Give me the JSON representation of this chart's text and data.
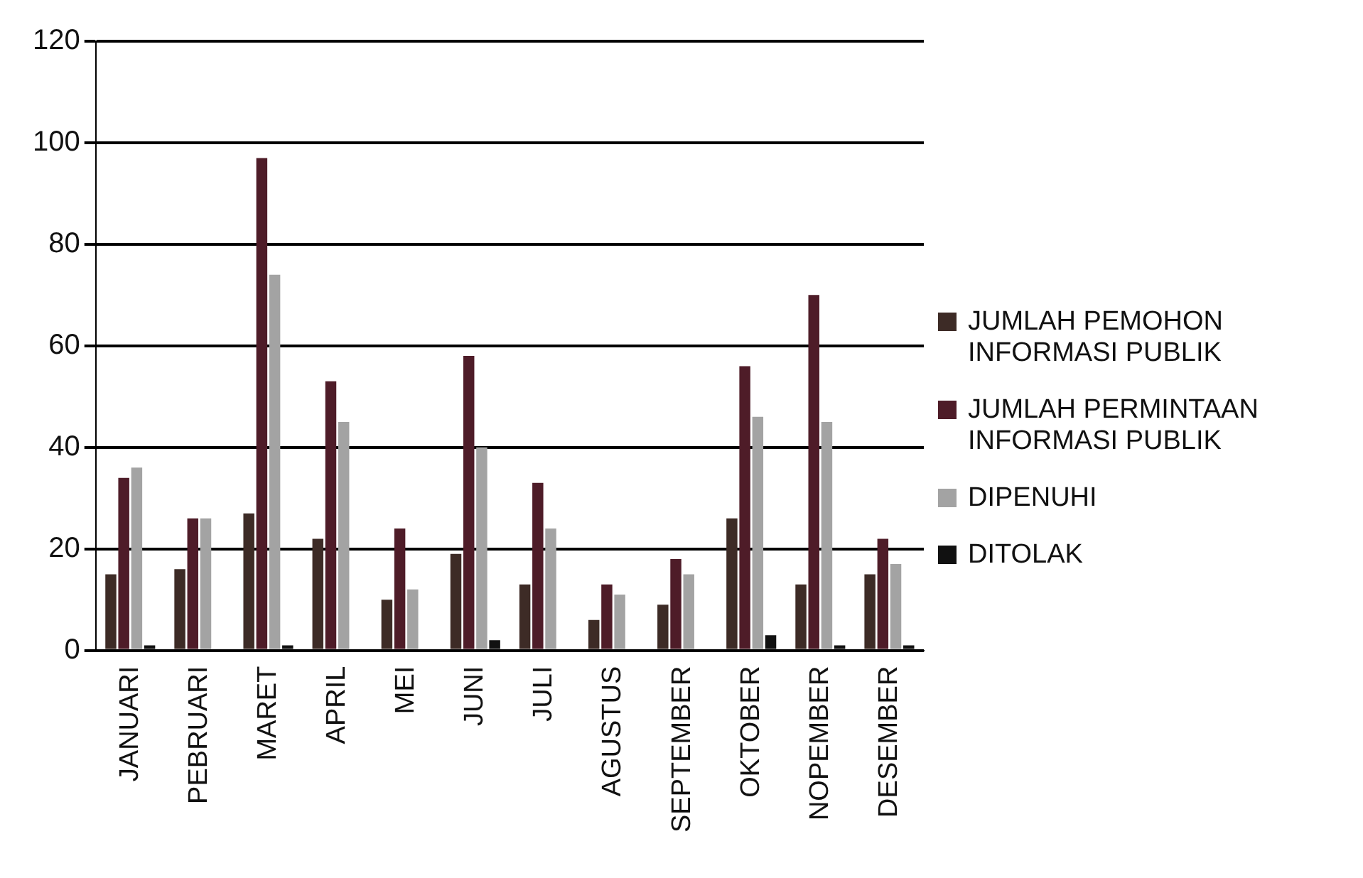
{
  "chart_data": {
    "type": "bar",
    "categories": [
      "JANUARI",
      "PEBRUARI",
      "MARET",
      "APRIL",
      "MEI",
      "JUNI",
      "JULI",
      "AGUSTUS",
      "SEPTEMBER",
      "OKTOBER",
      "NOPEMBER",
      "DESEMBER"
    ],
    "series": [
      {
        "name": "JUMLAH PEMOHON INFORMASI PUBLIK",
        "color": "#3d2b26",
        "values": [
          15,
          16,
          27,
          22,
          10,
          19,
          13,
          6,
          9,
          26,
          13,
          15
        ]
      },
      {
        "name": "JUMLAH PERMINTAAN INFORMASI PUBLIK",
        "color": "#4e1c28",
        "values": [
          34,
          26,
          97,
          53,
          24,
          58,
          33,
          13,
          18,
          56,
          70,
          22
        ]
      },
      {
        "name": "DIPENUHI",
        "color": "#a3a3a3",
        "values": [
          36,
          26,
          74,
          45,
          12,
          40,
          24,
          11,
          15,
          46,
          45,
          17
        ]
      },
      {
        "name": "DITOLAK",
        "color": "#111111",
        "values": [
          1,
          0,
          1,
          0,
          0,
          2,
          0,
          0,
          0,
          3,
          1,
          1
        ]
      }
    ],
    "ylim": [
      0,
      120
    ],
    "yticks": [
      0,
      20,
      40,
      60,
      80,
      100,
      120
    ],
    "grid": "y",
    "legend": "right"
  }
}
